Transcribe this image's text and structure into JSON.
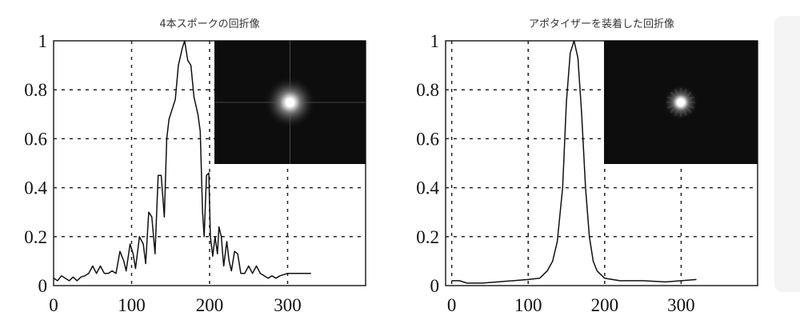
{
  "chart_data": [
    {
      "type": "line",
      "title": "4本スポークの回折像",
      "xlim": [
        0,
        400
      ],
      "ylim": [
        0,
        1
      ],
      "xticks": [
        0,
        100,
        200,
        300
      ],
      "yticks": [
        0,
        0.2,
        0.4,
        0.6,
        0.8,
        1
      ],
      "ytick_labels": [
        "0",
        "0.2",
        "0.4",
        "0.6",
        "0.8",
        "1"
      ],
      "grid": true,
      "inset": "diffraction-image-cross",
      "color": "#111111",
      "x": [
        0,
        5,
        10,
        15,
        20,
        25,
        30,
        35,
        40,
        45,
        50,
        55,
        60,
        65,
        70,
        75,
        80,
        85,
        90,
        93,
        98,
        102,
        105,
        110,
        115,
        118,
        122,
        126,
        130,
        134,
        138,
        142,
        145,
        148,
        152,
        156,
        160,
        165,
        168,
        172,
        176,
        180,
        185,
        188,
        191,
        193,
        196,
        199,
        201,
        204,
        207,
        210,
        212,
        215,
        218,
        222,
        225,
        228,
        232,
        236,
        240,
        245,
        250,
        255,
        260,
        265,
        270,
        275,
        280,
        285,
        290,
        300,
        310,
        320,
        330
      ],
      "y": [
        0.03,
        0.02,
        0.04,
        0.03,
        0.02,
        0.035,
        0.02,
        0.035,
        0.04,
        0.05,
        0.08,
        0.05,
        0.08,
        0.05,
        0.05,
        0.06,
        0.05,
        0.14,
        0.1,
        0.06,
        0.17,
        0.13,
        0.07,
        0.2,
        0.17,
        0.09,
        0.3,
        0.28,
        0.13,
        0.45,
        0.45,
        0.28,
        0.6,
        0.68,
        0.72,
        0.76,
        0.9,
        0.97,
        1.0,
        0.92,
        0.9,
        0.77,
        0.7,
        0.63,
        0.3,
        0.2,
        0.45,
        0.46,
        0.2,
        0.12,
        0.2,
        0.13,
        0.24,
        0.2,
        0.08,
        0.18,
        0.1,
        0.06,
        0.14,
        0.13,
        0.05,
        0.05,
        0.08,
        0.05,
        0.08,
        0.05,
        0.04,
        0.03,
        0.04,
        0.03,
        0.04,
        0.05,
        0.05,
        0.05,
        0.05
      ]
    },
    {
      "type": "line",
      "title": "アポタイザーを装着した回折像",
      "xlim": [
        -8,
        400
      ],
      "ylim": [
        0,
        1
      ],
      "xticks": [
        0,
        100,
        200,
        300
      ],
      "yticks": [
        0,
        0.2,
        0.4,
        0.6,
        0.8,
        1
      ],
      "ytick_labels": [
        "0",
        "0.2",
        "0.4",
        "0.6",
        "0.8",
        "1"
      ],
      "grid": true,
      "inset": "diffraction-image-star",
      "color": "#111111",
      "x": [
        0,
        10,
        20,
        40,
        60,
        80,
        100,
        115,
        125,
        132,
        138,
        145,
        150,
        155,
        160,
        165,
        170,
        175,
        180,
        185,
        190,
        200,
        220,
        250,
        280,
        300,
        320
      ],
      "y": [
        0.02,
        0.02,
        0.01,
        0.01,
        0.015,
        0.02,
        0.025,
        0.03,
        0.06,
        0.1,
        0.18,
        0.4,
        0.75,
        0.95,
        1.0,
        0.93,
        0.7,
        0.4,
        0.2,
        0.1,
        0.06,
        0.03,
        0.02,
        0.02,
        0.015,
        0.02,
        0.025
      ]
    }
  ]
}
